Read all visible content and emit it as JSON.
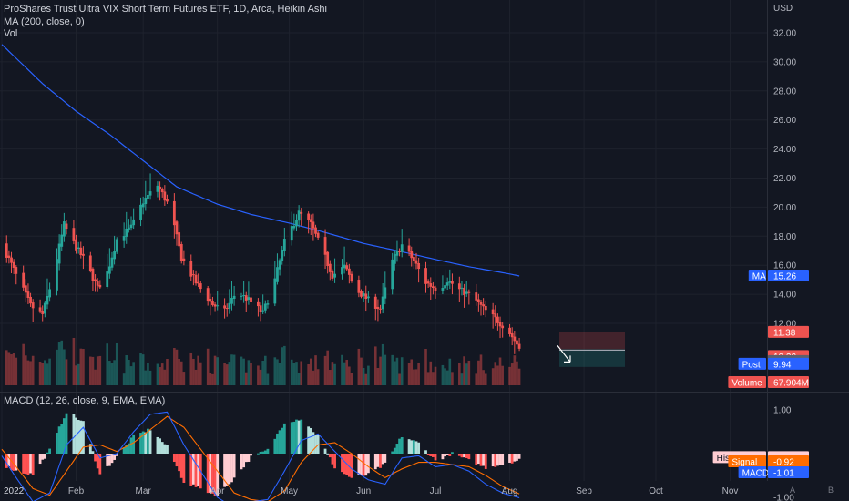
{
  "header": {
    "title": "ProShares Trust Ultra VIX Short Term Futures ETF, 1D, Arca, Heikin Ashi",
    "ma_label": "MA (200, close, 0)",
    "vol_label": "Vol",
    "macd_label": "MACD (12, 26, close, 9, EMA, EMA)"
  },
  "axis": {
    "currency": "USD",
    "price_ticks": [
      "32.00",
      "30.00",
      "28.00",
      "26.00",
      "24.00",
      "22.00",
      "20.00",
      "18.00",
      "16.00",
      "14.00",
      "12.00"
    ],
    "macd_ticks": [
      "1.00",
      "-1.00"
    ],
    "time_labels": [
      "2022",
      "Feb",
      "Mar",
      "Apr",
      "May",
      "Jun",
      "Jul",
      "Aug",
      "Sep",
      "Oct",
      "Nov"
    ]
  },
  "badges": {
    "ma_name": "MA",
    "ma_value": "15.26",
    "stop_value": "11.38",
    "entry_value": "10.22",
    "target_value": "10.00",
    "post_name": "Post",
    "post_value": "9.94",
    "volume_name": "Volume",
    "volume_value": "67.904M",
    "histogram_name": "Histogram",
    "histogram_value": "-0.09",
    "signal_name": "Signal",
    "signal_value": "-0.92",
    "macd_name": "MACD",
    "macd_value": "-1.01"
  },
  "corner": {
    "auto": "A",
    "log": "B"
  },
  "colors": {
    "up": "#26a69a",
    "down": "#ef5350",
    "ma": "#2962ff",
    "macd": "#2962ff",
    "signal": "#ff6d00",
    "hist_up_strong": "#26a69a",
    "hist_up_weak": "#b2dfdb",
    "hist_down_strong": "#ff5252",
    "hist_down_weak": "#ffcdd2"
  },
  "chart_data": {
    "type": "candlestick",
    "symbol": "ProShares Trust Ultra VIX Short Term Futures ETF",
    "interval": "1D",
    "style": "Heikin Ashi",
    "ylim": [
      11.0,
      33.2
    ],
    "price_anchors": [
      {
        "date": "2022-01-01",
        "price": 17.5
      },
      {
        "date": "2022-01-07",
        "price": 15.3
      },
      {
        "date": "2022-01-13",
        "price": 13.2
      },
      {
        "date": "2022-01-18",
        "price": 12.6
      },
      {
        "date": "2022-01-22",
        "price": 15.0
      },
      {
        "date": "2022-01-27",
        "price": 18.8
      },
      {
        "date": "2022-01-31",
        "price": 17.5
      },
      {
        "date": "2022-02-05",
        "price": 16.2
      },
      {
        "date": "2022-02-10",
        "price": 14.4
      },
      {
        "date": "2022-02-14",
        "price": 15.5
      },
      {
        "date": "2022-02-18",
        "price": 17.8
      },
      {
        "date": "2022-02-24",
        "price": 18.6
      },
      {
        "date": "2022-03-01",
        "price": 20.4
      },
      {
        "date": "2022-03-07",
        "price": 21.5
      },
      {
        "date": "2022-03-12",
        "price": 20.0
      },
      {
        "date": "2022-03-17",
        "price": 16.5
      },
      {
        "date": "2022-03-23",
        "price": 14.8
      },
      {
        "date": "2022-03-30",
        "price": 13.3
      },
      {
        "date": "2022-04-04",
        "price": 12.8
      },
      {
        "date": "2022-04-09",
        "price": 14.2
      },
      {
        "date": "2022-04-14",
        "price": 13.6
      },
      {
        "date": "2022-04-20",
        "price": 12.7
      },
      {
        "date": "2022-04-25",
        "price": 15.0
      },
      {
        "date": "2022-04-29",
        "price": 17.6
      },
      {
        "date": "2022-05-05",
        "price": 19.6
      },
      {
        "date": "2022-05-10",
        "price": 18.8
      },
      {
        "date": "2022-05-14",
        "price": 17.3
      },
      {
        "date": "2022-05-19",
        "price": 15.3
      },
      {
        "date": "2022-05-24",
        "price": 15.9
      },
      {
        "date": "2022-05-29",
        "price": 14.3
      },
      {
        "date": "2022-06-03",
        "price": 13.6
      },
      {
        "date": "2022-06-08",
        "price": 13.0
      },
      {
        "date": "2022-06-13",
        "price": 16.3
      },
      {
        "date": "2022-06-17",
        "price": 17.4
      },
      {
        "date": "2022-06-22",
        "price": 16.3
      },
      {
        "date": "2022-06-27",
        "price": 14.8
      },
      {
        "date": "2022-07-02",
        "price": 14.3
      },
      {
        "date": "2022-07-06",
        "price": 15.0
      },
      {
        "date": "2022-07-11",
        "price": 14.3
      },
      {
        "date": "2022-07-16",
        "price": 13.9
      },
      {
        "date": "2022-07-21",
        "price": 13.0
      },
      {
        "date": "2022-07-26",
        "price": 12.3
      },
      {
        "date": "2022-07-31",
        "price": 11.6
      },
      {
        "date": "2022-08-05",
        "price": 10.3
      }
    ],
    "ma200_anchors": [
      {
        "date": "2022-01-01",
        "value": 31.2
      },
      {
        "date": "2022-01-18",
        "value": 28.5
      },
      {
        "date": "2022-02-01",
        "value": 26.6
      },
      {
        "date": "2022-02-15",
        "value": 25.0
      },
      {
        "date": "2022-03-01",
        "value": 23.2
      },
      {
        "date": "2022-03-15",
        "value": 21.4
      },
      {
        "date": "2022-04-01",
        "value": 20.2
      },
      {
        "date": "2022-04-15",
        "value": 19.5
      },
      {
        "date": "2022-05-01",
        "value": 18.9
      },
      {
        "date": "2022-05-15",
        "value": 18.3
      },
      {
        "date": "2022-06-01",
        "value": 17.5
      },
      {
        "date": "2022-06-15",
        "value": 17.0
      },
      {
        "date": "2022-07-01",
        "value": 16.4
      },
      {
        "date": "2022-07-15",
        "value": 15.9
      },
      {
        "date": "2022-08-01",
        "value": 15.4
      },
      {
        "date": "2022-08-05",
        "value": 15.26
      }
    ],
    "macd_anchors": [
      {
        "date": "2022-01-01",
        "macd": -0.05,
        "signal": 0.1
      },
      {
        "date": "2022-01-07",
        "macd": -0.55,
        "signal": -0.3
      },
      {
        "date": "2022-01-14",
        "macd": -1.1,
        "signal": -0.8
      },
      {
        "date": "2022-01-21",
        "macd": -0.9,
        "signal": -0.95
      },
      {
        "date": "2022-01-28",
        "macd": 0.2,
        "signal": -0.4
      },
      {
        "date": "2022-02-04",
        "macd": 0.6,
        "signal": 0.15
      },
      {
        "date": "2022-02-11",
        "macd": -0.1,
        "signal": 0.2
      },
      {
        "date": "2022-02-18",
        "macd": 0.0,
        "signal": 0.05
      },
      {
        "date": "2022-02-25",
        "macd": 0.5,
        "signal": 0.25
      },
      {
        "date": "2022-03-04",
        "macd": 0.9,
        "signal": 0.55
      },
      {
        "date": "2022-03-11",
        "macd": 0.95,
        "signal": 0.85
      },
      {
        "date": "2022-03-18",
        "macd": 0.2,
        "signal": 0.6
      },
      {
        "date": "2022-03-25",
        "macd": -0.4,
        "signal": 0.1
      },
      {
        "date": "2022-04-01",
        "macd": -1.0,
        "signal": -0.4
      },
      {
        "date": "2022-04-08",
        "macd": -1.25,
        "signal": -0.9
      },
      {
        "date": "2022-04-15",
        "macd": -1.1,
        "signal": -1.05
      },
      {
        "date": "2022-04-22",
        "macd": -1.05,
        "signal": -1.1
      },
      {
        "date": "2022-04-29",
        "macd": -0.4,
        "signal": -0.85
      },
      {
        "date": "2022-05-06",
        "macd": 0.3,
        "signal": -0.2
      },
      {
        "date": "2022-05-13",
        "macd": 0.45,
        "signal": 0.2
      },
      {
        "date": "2022-05-20",
        "macd": 0.05,
        "signal": 0.25
      },
      {
        "date": "2022-05-27",
        "macd": -0.35,
        "signal": 0.0
      },
      {
        "date": "2022-06-03",
        "macd": -0.6,
        "signal": -0.3
      },
      {
        "date": "2022-06-10",
        "macd": -0.7,
        "signal": -0.55
      },
      {
        "date": "2022-06-17",
        "macd": -0.1,
        "signal": -0.35
      },
      {
        "date": "2022-06-24",
        "macd": -0.05,
        "signal": -0.2
      },
      {
        "date": "2022-07-01",
        "macd": -0.3,
        "signal": -0.2
      },
      {
        "date": "2022-07-08",
        "macd": -0.25,
        "signal": -0.25
      },
      {
        "date": "2022-07-15",
        "macd": -0.4,
        "signal": -0.3
      },
      {
        "date": "2022-07-22",
        "macd": -0.7,
        "signal": -0.5
      },
      {
        "date": "2022-07-29",
        "macd": -0.9,
        "signal": -0.75
      },
      {
        "date": "2022-08-05",
        "macd": -1.01,
        "signal": -0.92
      }
    ],
    "macd_ylim": [
      -1.55,
      1.55
    ],
    "volume": {
      "last_value": "67.904M",
      "typical_range_millions": [
        20,
        120
      ]
    },
    "position_tool": {
      "stop": 11.38,
      "entry": 10.22,
      "target_band_low": 9.0,
      "target": 10.0
    }
  }
}
